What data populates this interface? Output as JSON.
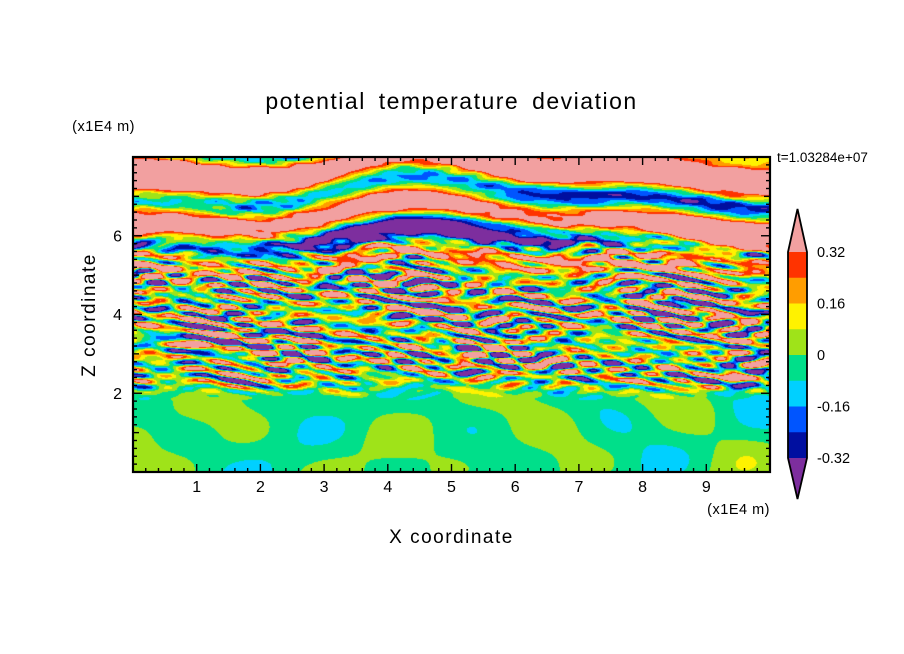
{
  "title": "potential temperature deviation",
  "timestamp": "t=1.03284e+07",
  "axes": {
    "x_label": "X coordinate",
    "x_unit": "(x1E4 m)",
    "y_label": "Z coordinate",
    "y_unit": "(x1E4 m)"
  },
  "chart_data": {
    "type": "heatmap",
    "title": "potential temperature deviation",
    "xlabel": "X coordinate",
    "ylabel": "Z coordinate",
    "x_axis_factor": "(x1E4 m)",
    "y_axis_factor": "(x1E4 m)",
    "time_annotation": "t=1.03284e+07",
    "xlim": [
      0,
      10
    ],
    "ylim": [
      0,
      8
    ],
    "x_major_ticks": [
      1,
      2,
      3,
      4,
      5,
      6,
      7,
      8,
      9
    ],
    "y_labeled_ticks": [
      2,
      4,
      6
    ],
    "minor_tick_step": 0.2,
    "grid": false,
    "legend_position": "right-colorbar",
    "colorbar": {
      "labels": [
        "0.32",
        "0.16",
        "0",
        "-0.16",
        "-0.32"
      ],
      "label_values": [
        0.32,
        0.16,
        0,
        -0.16,
        -0.32
      ],
      "levels": [
        -0.32,
        -0.24,
        -0.16,
        -0.08,
        0,
        0.08,
        0.16,
        0.24,
        0.32
      ],
      "band_colors_low_to_high": [
        "#000FA0",
        "#0055FF",
        "#00D0FF",
        "#00DF8A",
        "#9FE319",
        "#FFF200",
        "#FF9D00",
        "#FF3300"
      ],
      "below_min_color": "#7D2E9E",
      "above_max_color": "#F2A0A0"
    },
    "field_structure": {
      "description": "turbulent stratified potential-temperature deviation field",
      "layers": [
        {
          "z_range": [
            0,
            2.2
          ],
          "character": "weak large-scale convective swirls, deviation near zero",
          "dominant_colors": [
            "#00DF8A",
            "#9FE319"
          ]
        },
        {
          "z_range": [
            2.0,
            5.6
          ],
          "character": "strong thin horizontally-elongated turbulent streaks spanning the full color range",
          "dominant_colors": [
            "#FFF200",
            "#FF9D00",
            "#FF3300",
            "#00D0FF",
            "#0055FF",
            "#000FA0",
            "#9FE319"
          ]
        },
        {
          "z_range": [
            5.4,
            8
          ],
          "character": "large-amplitude smooth gravity-wave layers saturating the color scale",
          "dominant_colors": [
            "#F2A0A0",
            "#7D2E9E"
          ]
        }
      ]
    }
  }
}
